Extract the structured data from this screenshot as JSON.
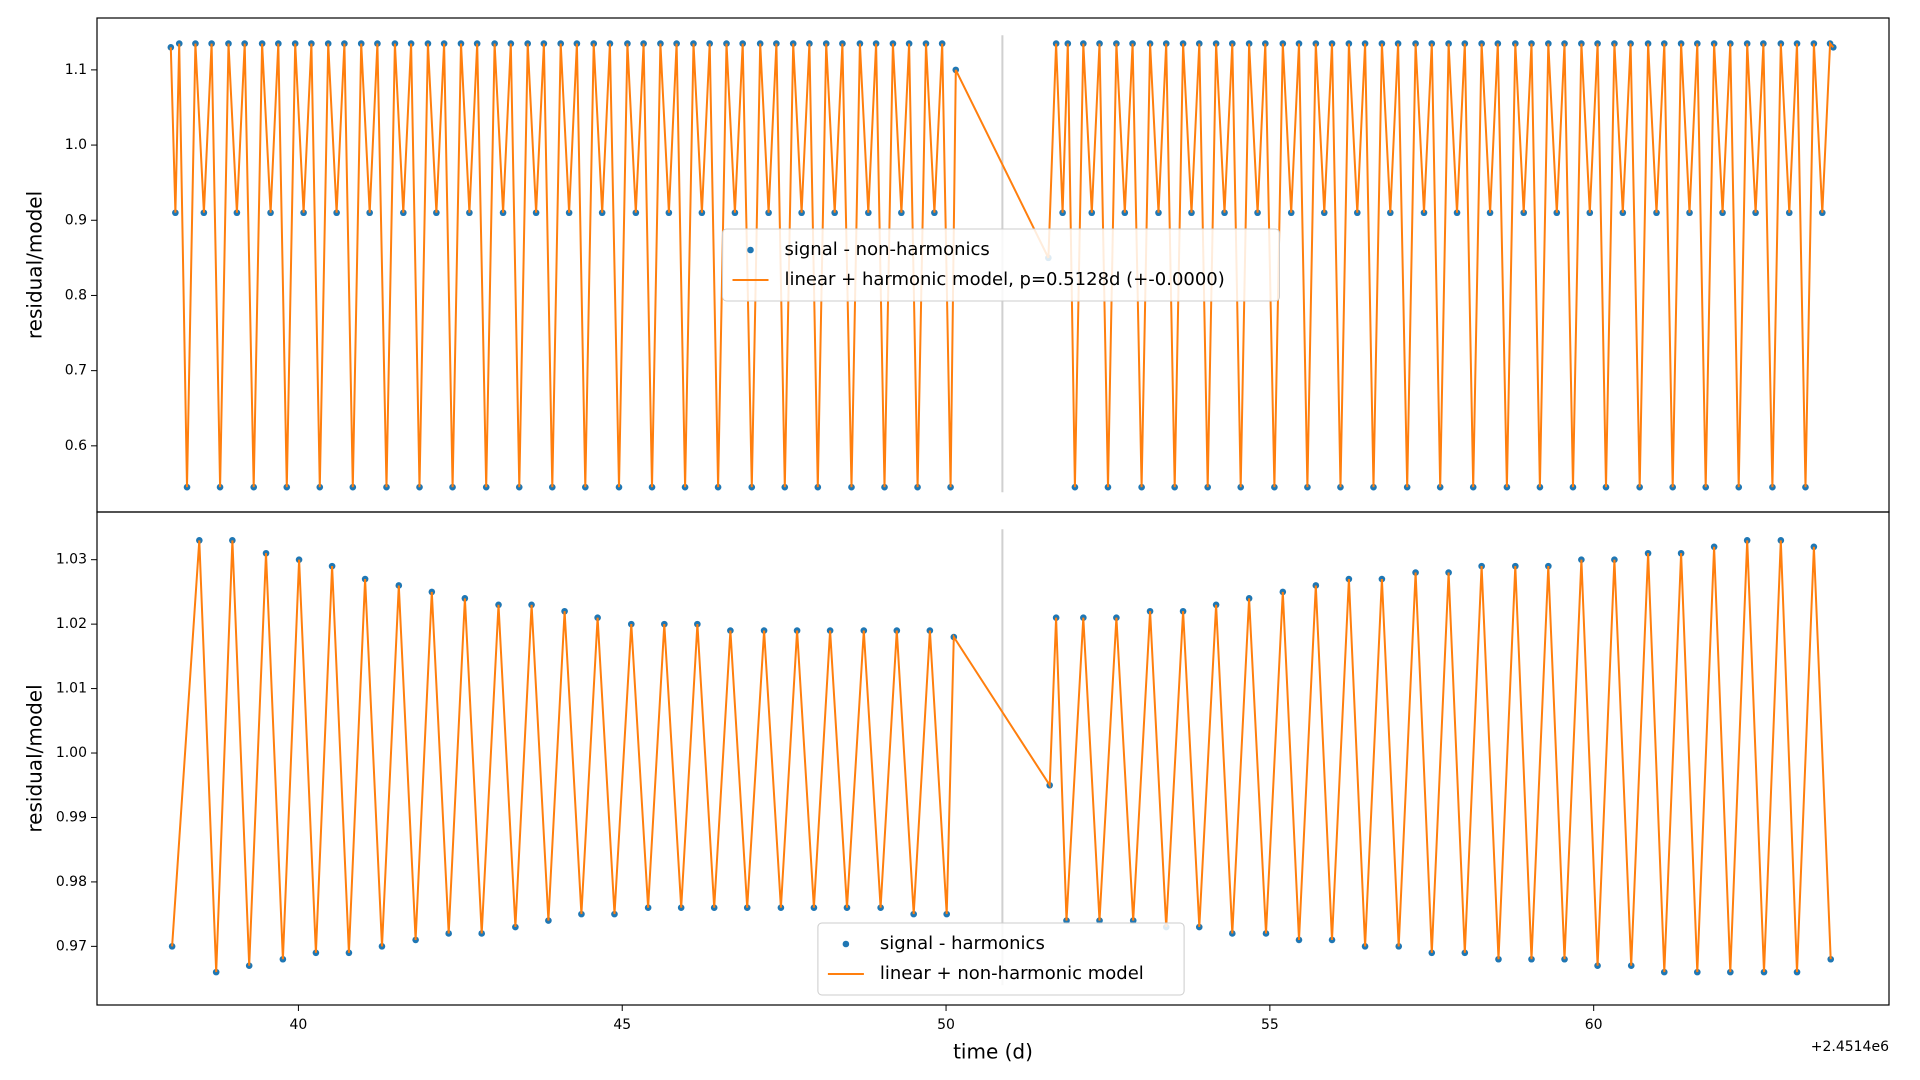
{
  "chart_data": [
    {
      "type": "scatter_line",
      "ylabel": "residual/model",
      "xlim": [
        36.89,
        64.56
      ],
      "ylim": [
        0.512,
        1.169
      ],
      "yticks": [
        0.6,
        0.7,
        0.8,
        0.9,
        {
          "value": 1.0,
          "label": "1.0"
        },
        1.1
      ],
      "vline_x": 50.87,
      "legend": "center",
      "x": [
        38.03,
        38.1,
        38.16,
        38.28,
        38.41,
        38.54,
        38.66,
        38.79,
        38.92,
        39.05,
        39.17,
        39.31,
        39.44,
        39.57,
        39.69,
        39.82,
        39.95,
        40.08,
        40.2,
        40.33,
        40.46,
        40.59,
        40.71,
        40.84,
        40.97,
        41.1,
        41.22,
        41.36,
        41.49,
        41.62,
        41.74,
        41.87,
        42.0,
        42.13,
        42.25,
        42.38,
        42.51,
        42.64,
        42.76,
        42.9,
        43.03,
        43.16,
        43.28,
        43.41,
        43.54,
        43.67,
        43.79,
        43.92,
        44.05,
        44.18,
        44.3,
        44.43,
        44.56,
        44.69,
        44.81,
        44.95,
        45.08,
        45.21,
        45.33,
        45.46,
        45.59,
        45.72,
        45.84,
        45.97,
        46.1,
        46.23,
        46.35,
        46.48,
        46.61,
        46.74,
        46.86,
        47.0,
        47.13,
        47.26,
        47.38,
        47.51,
        47.64,
        47.77,
        47.89,
        48.02,
        48.15,
        48.28,
        48.4,
        48.54,
        48.67,
        48.8,
        48.92,
        49.05,
        49.18,
        49.31,
        49.43,
        49.56,
        49.69,
        49.82,
        49.94,
        50.07,
        50.15,
        51.58,
        51.7,
        51.8,
        51.88,
        51.99,
        52.12,
        52.25,
        52.37,
        52.5,
        52.63,
        52.76,
        52.88,
        53.02,
        53.15,
        53.28,
        53.4,
        53.53,
        53.66,
        53.79,
        53.91,
        54.04,
        54.17,
        54.3,
        54.42,
        54.55,
        54.68,
        54.81,
        54.93,
        55.07,
        55.2,
        55.33,
        55.45,
        55.58,
        55.71,
        55.84,
        55.96,
        56.09,
        56.22,
        56.35,
        56.47,
        56.6,
        56.73,
        56.86,
        56.98,
        57.12,
        57.25,
        57.38,
        57.5,
        57.63,
        57.76,
        57.89,
        58.01,
        58.14,
        58.27,
        58.4,
        58.52,
        58.66,
        58.79,
        58.92,
        59.04,
        59.17,
        59.3,
        59.43,
        59.55,
        59.68,
        59.81,
        59.94,
        60.06,
        60.19,
        60.32,
        60.45,
        60.57,
        60.71,
        60.84,
        60.97,
        61.09,
        61.22,
        61.35,
        61.48,
        61.6,
        61.73,
        61.86,
        61.99,
        62.11,
        62.24,
        62.37,
        62.5,
        62.62,
        62.76,
        62.89,
        63.02,
        63.14,
        63.27,
        63.4,
        63.53,
        63.65,
        63.7
      ],
      "series": [
        {
          "name": "signal - non-harmonics",
          "color": "#1f77b4",
          "marker": "dot",
          "values": [
            1.13,
            0.91,
            1.135,
            0.545,
            1.135,
            0.91,
            1.135,
            0.545,
            1.135,
            0.91,
            1.135,
            0.545,
            1.135,
            0.91,
            1.135,
            0.545,
            1.135,
            0.91,
            1.135,
            0.545,
            1.135,
            0.91,
            1.135,
            0.545,
            1.135,
            0.91,
            1.135,
            0.545,
            1.135,
            0.91,
            1.135,
            0.545,
            1.135,
            0.91,
            1.135,
            0.545,
            1.135,
            0.91,
            1.135,
            0.545,
            1.135,
            0.91,
            1.135,
            0.545,
            1.135,
            0.91,
            1.135,
            0.545,
            1.135,
            0.91,
            1.135,
            0.545,
            1.135,
            0.91,
            1.135,
            0.545,
            1.135,
            0.91,
            1.135,
            0.545,
            1.135,
            0.91,
            1.135,
            0.545,
            1.135,
            0.91,
            1.135,
            0.545,
            1.135,
            0.91,
            1.135,
            0.545,
            1.135,
            0.91,
            1.135,
            0.545,
            1.135,
            0.91,
            1.135,
            0.545,
            1.135,
            0.91,
            1.135,
            0.545,
            1.135,
            0.91,
            1.135,
            0.545,
            1.135,
            0.91,
            1.135,
            0.545,
            1.135,
            0.91,
            1.135,
            0.545,
            1.1,
            0.85,
            1.135,
            0.91,
            1.135,
            0.545,
            1.135,
            0.91,
            1.135,
            0.545,
            1.135,
            0.91,
            1.135,
            0.545,
            1.135,
            0.91,
            1.135,
            0.545,
            1.135,
            0.91,
            1.135,
            0.545,
            1.135,
            0.91,
            1.135,
            0.545,
            1.135,
            0.91,
            1.135,
            0.545,
            1.135,
            0.91,
            1.135,
            0.545,
            1.135,
            0.91,
            1.135,
            0.545,
            1.135,
            0.91,
            1.135,
            0.545,
            1.135,
            0.91,
            1.135,
            0.545,
            1.135,
            0.91,
            1.135,
            0.545,
            1.135,
            0.91,
            1.135,
            0.545,
            1.135,
            0.91,
            1.135,
            0.545,
            1.135,
            0.91,
            1.135,
            0.545,
            1.135,
            0.91,
            1.135,
            0.545,
            1.135,
            0.91,
            1.135,
            0.545,
            1.135,
            0.91,
            1.135,
            0.545,
            1.135,
            0.91,
            1.135,
            0.545,
            1.135,
            0.91,
            1.135,
            0.545,
            1.135,
            0.91,
            1.135,
            0.545,
            1.135,
            0.91,
            1.135,
            0.545,
            1.135,
            0.91,
            1.135,
            0.545,
            1.135,
            0.91,
            1.135,
            1.13
          ]
        },
        {
          "name": "linear + harmonic model, p=0.5128d (+-0.0000)",
          "color": "#ff7f0e",
          "marker": "line",
          "values": [
            1.13,
            0.91,
            1.135,
            0.545,
            1.135,
            0.91,
            1.135,
            0.545,
            1.135,
            0.91,
            1.135,
            0.545,
            1.135,
            0.91,
            1.135,
            0.545,
            1.135,
            0.91,
            1.135,
            0.545,
            1.135,
            0.91,
            1.135,
            0.545,
            1.135,
            0.91,
            1.135,
            0.545,
            1.135,
            0.91,
            1.135,
            0.545,
            1.135,
            0.91,
            1.135,
            0.545,
            1.135,
            0.91,
            1.135,
            0.545,
            1.135,
            0.91,
            1.135,
            0.545,
            1.135,
            0.91,
            1.135,
            0.545,
            1.135,
            0.91,
            1.135,
            0.545,
            1.135,
            0.91,
            1.135,
            0.545,
            1.135,
            0.91,
            1.135,
            0.545,
            1.135,
            0.91,
            1.135,
            0.545,
            1.135,
            0.91,
            1.135,
            0.545,
            1.135,
            0.91,
            1.135,
            0.545,
            1.135,
            0.91,
            1.135,
            0.545,
            1.135,
            0.91,
            1.135,
            0.545,
            1.135,
            0.91,
            1.135,
            0.545,
            1.135,
            0.91,
            1.135,
            0.545,
            1.135,
            0.91,
            1.135,
            0.545,
            1.135,
            0.91,
            1.135,
            0.545,
            1.1,
            0.85,
            1.135,
            0.91,
            1.135,
            0.545,
            1.135,
            0.91,
            1.135,
            0.545,
            1.135,
            0.91,
            1.135,
            0.545,
            1.135,
            0.91,
            1.135,
            0.545,
            1.135,
            0.91,
            1.135,
            0.545,
            1.135,
            0.91,
            1.135,
            0.545,
            1.135,
            0.91,
            1.135,
            0.545,
            1.135,
            0.91,
            1.135,
            0.545,
            1.135,
            0.91,
            1.135,
            0.545,
            1.135,
            0.91,
            1.135,
            0.545,
            1.135,
            0.91,
            1.135,
            0.545,
            1.135,
            0.91,
            1.135,
            0.545,
            1.135,
            0.91,
            1.135,
            0.545,
            1.135,
            0.91,
            1.135,
            0.545,
            1.135,
            0.91,
            1.135,
            0.545,
            1.135,
            0.91,
            1.135,
            0.545,
            1.135,
            0.91,
            1.135,
            0.545,
            1.135,
            0.91,
            1.135,
            0.545,
            1.135,
            0.91,
            1.135,
            0.545,
            1.135,
            0.91,
            1.135,
            0.545,
            1.135,
            0.91,
            1.135,
            0.545,
            1.135,
            0.91,
            1.135,
            0.545,
            1.135,
            0.91,
            1.135,
            0.545,
            1.135,
            0.91,
            1.135,
            1.13
          ]
        }
      ]
    },
    {
      "type": "scatter_line",
      "ylabel": "residual/model",
      "xlabel": "time (d)",
      "offset_label": "+2.4514e6",
      "xlim": [
        36.89,
        64.56
      ],
      "ylim": [
        0.9609,
        1.0374
      ],
      "xticks": [
        40,
        45,
        50,
        55,
        60
      ],
      "yticks": [
        0.97,
        0.98,
        0.99,
        {
          "value": 1.0,
          "label": "1.00"
        },
        1.01,
        1.02,
        1.03
      ],
      "vline_x": 50.87,
      "legend": "lower center",
      "x": [
        38.05,
        38.47,
        38.73,
        38.98,
        39.24,
        39.5,
        39.76,
        40.01,
        40.27,
        40.52,
        40.78,
        41.03,
        41.29,
        41.55,
        41.81,
        42.06,
        42.32,
        42.57,
        42.83,
        43.09,
        43.35,
        43.6,
        43.86,
        44.11,
        44.37,
        44.62,
        44.88,
        45.14,
        45.4,
        45.65,
        45.91,
        46.16,
        46.42,
        46.67,
        46.93,
        47.19,
        47.45,
        47.7,
        47.96,
        48.21,
        48.47,
        48.73,
        48.99,
        49.24,
        49.5,
        49.75,
        50.01,
        50.12,
        51.6,
        51.7,
        51.86,
        52.12,
        52.37,
        52.63,
        52.89,
        53.15,
        53.4,
        53.66,
        53.91,
        54.17,
        54.42,
        54.68,
        54.94,
        55.2,
        55.45,
        55.71,
        55.96,
        56.22,
        56.47,
        56.73,
        56.99,
        57.25,
        57.5,
        57.76,
        58.01,
        58.27,
        58.53,
        58.79,
        59.04,
        59.3,
        59.55,
        59.81,
        60.06,
        60.32,
        60.58,
        60.84,
        61.09,
        61.35,
        61.6,
        61.86,
        62.11,
        62.37,
        62.63,
        62.89,
        63.14,
        63.4,
        63.66
      ],
      "series": [
        {
          "name": "signal - harmonics",
          "color": "#1f77b4",
          "marker": "dot",
          "values": [
            0.97,
            1.033,
            0.966,
            1.033,
            0.967,
            1.031,
            0.968,
            1.03,
            0.969,
            1.029,
            0.969,
            1.027,
            0.97,
            1.026,
            0.971,
            1.025,
            0.972,
            1.024,
            0.972,
            1.023,
            0.973,
            1.023,
            0.974,
            1.022,
            0.975,
            1.021,
            0.975,
            1.02,
            0.976,
            1.02,
            0.976,
            1.02,
            0.976,
            1.019,
            0.976,
            1.019,
            0.976,
            1.019,
            0.976,
            1.019,
            0.976,
            1.019,
            0.976,
            1.019,
            0.975,
            1.019,
            0.975,
            1.018,
            0.995,
            1.021,
            0.974,
            1.021,
            0.974,
            1.021,
            0.974,
            1.022,
            0.973,
            1.022,
            0.973,
            1.023,
            0.972,
            1.024,
            0.972,
            1.025,
            0.971,
            1.026,
            0.971,
            1.027,
            0.97,
            1.027,
            0.97,
            1.028,
            0.969,
            1.028,
            0.969,
            1.029,
            0.968,
            1.029,
            0.968,
            1.029,
            0.968,
            1.03,
            0.967,
            1.03,
            0.967,
            1.031,
            0.966,
            1.031,
            0.966,
            1.032,
            0.966,
            1.033,
            0.966,
            1.033,
            0.966,
            1.032,
            0.968
          ]
        },
        {
          "name": "linear + non-harmonic model",
          "color": "#ff7f0e",
          "marker": "line",
          "values": [
            0.97,
            1.033,
            0.966,
            1.033,
            0.967,
            1.031,
            0.968,
            1.03,
            0.969,
            1.029,
            0.969,
            1.027,
            0.97,
            1.026,
            0.971,
            1.025,
            0.972,
            1.024,
            0.972,
            1.023,
            0.973,
            1.023,
            0.974,
            1.022,
            0.975,
            1.021,
            0.975,
            1.02,
            0.976,
            1.02,
            0.976,
            1.02,
            0.976,
            1.019,
            0.976,
            1.019,
            0.976,
            1.019,
            0.976,
            1.019,
            0.976,
            1.019,
            0.976,
            1.019,
            0.975,
            1.019,
            0.975,
            1.018,
            0.995,
            1.021,
            0.974,
            1.021,
            0.974,
            1.021,
            0.974,
            1.022,
            0.973,
            1.022,
            0.973,
            1.023,
            0.972,
            1.024,
            0.972,
            1.025,
            0.971,
            1.026,
            0.971,
            1.027,
            0.97,
            1.027,
            0.97,
            1.028,
            0.969,
            1.028,
            0.969,
            1.029,
            0.968,
            1.029,
            0.968,
            1.029,
            0.968,
            1.03,
            0.967,
            1.03,
            0.967,
            1.031,
            0.966,
            1.031,
            0.966,
            1.032,
            0.966,
            1.033,
            0.966,
            1.033,
            0.966,
            1.032,
            0.968
          ]
        }
      ]
    }
  ]
}
